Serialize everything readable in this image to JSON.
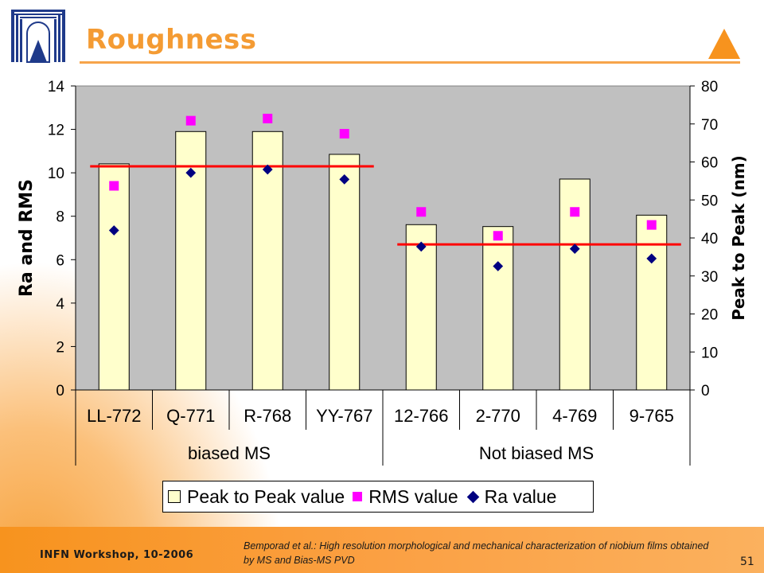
{
  "slide": {
    "title": "Roughness",
    "footer_left": "INFN Workshop, 10-2006",
    "reference": "Bemporad et al.: High resolution morphological and mechanical characterization of niobium films obtained by MS and Bias-MS PVD",
    "page_number": "51",
    "accent_color": "#f7931e"
  },
  "legend": {
    "items": [
      {
        "label": "Peak to Peak value"
      },
      {
        "label": "RMS value"
      },
      {
        "label": "Ra value"
      }
    ]
  },
  "chart_data": {
    "type": "bar",
    "title": "",
    "categories": [
      "LL-772",
      "Q-771",
      "R-768",
      "YY-767",
      "12-766",
      "2-770",
      "4-769",
      "9-765"
    ],
    "groups": [
      {
        "label": "biased MS",
        "categories": [
          "LL-772",
          "Q-771",
          "R-768",
          "YY-767"
        ]
      },
      {
        "label": "Not biased MS",
        "categories": [
          "12-766",
          "2-770",
          "4-769",
          "9-765"
        ]
      }
    ],
    "ylabel": "Ra and RMS",
    "ylim": [
      0,
      14
    ],
    "yticks": [
      0,
      2,
      4,
      6,
      8,
      10,
      12,
      14
    ],
    "y2label": "Peak to Peak (nm)",
    "y2lim": [
      0,
      80
    ],
    "y2ticks": [
      0,
      10,
      20,
      30,
      40,
      50,
      60,
      70,
      80
    ],
    "series": [
      {
        "name": "Peak to Peak value",
        "type": "bar",
        "axis": "y2",
        "color": "#ffffcc",
        "values": [
          59.5,
          68,
          68,
          62,
          43.5,
          43,
          55.5,
          46
        ]
      },
      {
        "name": "RMS value",
        "type": "scatter",
        "marker": "square",
        "axis": "y",
        "color": "#ff00ff",
        "values": [
          9.4,
          12.4,
          12.5,
          11.8,
          8.2,
          7.1,
          8.2,
          7.6
        ]
      },
      {
        "name": "Ra value",
        "type": "scatter",
        "marker": "diamond",
        "axis": "y",
        "color": "#000080",
        "values": [
          7.35,
          10.0,
          10.15,
          9.7,
          6.6,
          5.7,
          6.5,
          6.05
        ]
      }
    ],
    "reference_lines": [
      {
        "axis": "y",
        "value": 10.3,
        "from": 0,
        "to": 3,
        "color": "#ff0000"
      },
      {
        "axis": "y",
        "value": 6.7,
        "from": 4,
        "to": 7,
        "color": "#ff0000"
      }
    ],
    "plot_background": "#c0c0c0",
    "grid": false,
    "legend_position": "bottom"
  }
}
